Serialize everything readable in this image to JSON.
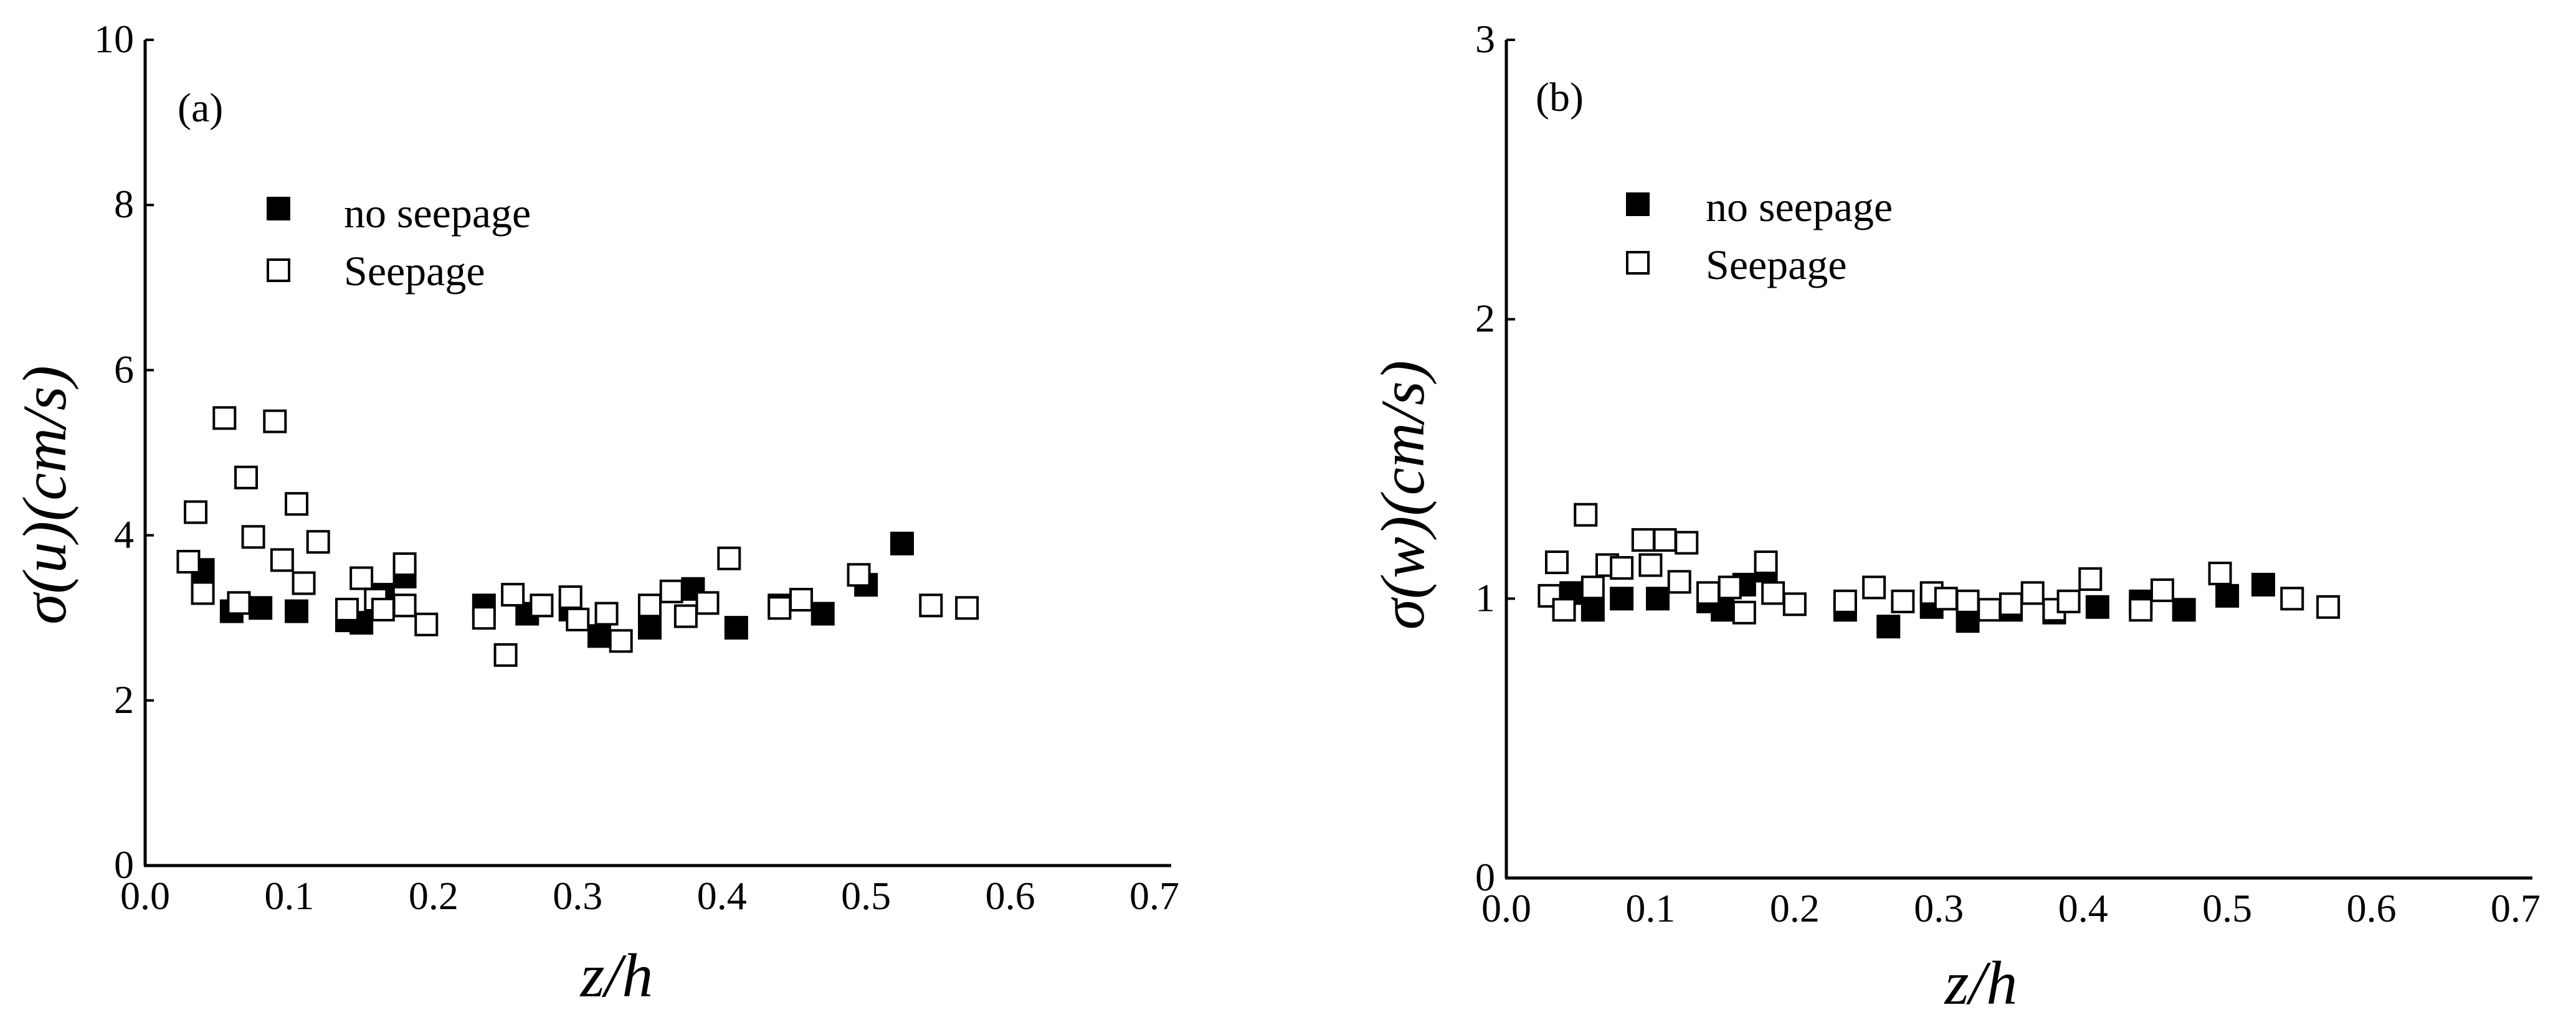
{
  "chart_data": [
    {
      "type": "scatter",
      "panel_label": "(a)",
      "title": "",
      "xlabel": "z/h",
      "ylabel": "σ(u)(cm/s)",
      "xlim": [
        0.0,
        0.7
      ],
      "ylim": [
        0,
        10
      ],
      "x_ticks": [
        "0.0",
        "0.1",
        "0.2",
        "0.3",
        "0.4",
        "0.5",
        "0.6",
        "0.7"
      ],
      "y_ticks": [
        "0",
        "2",
        "4",
        "6",
        "8",
        "10"
      ],
      "legend_placement": "upper-left",
      "grid": false,
      "series": [
        {
          "name": "no seepage",
          "marker": "filled-square",
          "points": [
            [
              0.04,
              3.58
            ],
            [
              0.06,
              3.08
            ],
            [
              0.08,
              3.12
            ],
            [
              0.105,
              3.08
            ],
            [
              0.14,
              2.97
            ],
            [
              0.15,
              2.94
            ],
            [
              0.165,
              3.28
            ],
            [
              0.18,
              3.5
            ],
            [
              0.235,
              3.15
            ],
            [
              0.265,
              3.05
            ],
            [
              0.295,
              3.1
            ],
            [
              0.315,
              2.78
            ],
            [
              0.35,
              2.88
            ],
            [
              0.38,
              3.35
            ],
            [
              0.41,
              2.88
            ],
            [
              0.44,
              3.15
            ],
            [
              0.47,
              3.05
            ],
            [
              0.5,
              3.4
            ],
            [
              0.525,
              3.9
            ]
          ]
        },
        {
          "name": "Seepage",
          "marker": "open-square",
          "points": [
            [
              0.03,
              3.68
            ],
            [
              0.035,
              4.28
            ],
            [
              0.04,
              3.3
            ],
            [
              0.055,
              5.42
            ],
            [
              0.065,
              3.18
            ],
            [
              0.07,
              4.7
            ],
            [
              0.075,
              3.98
            ],
            [
              0.09,
              5.38
            ],
            [
              0.095,
              3.7
            ],
            [
              0.105,
              4.38
            ],
            [
              0.11,
              3.42
            ],
            [
              0.12,
              3.92
            ],
            [
              0.14,
              3.1
            ],
            [
              0.15,
              3.48
            ],
            [
              0.16,
              3.22
            ],
            [
              0.165,
              3.1
            ],
            [
              0.18,
              3.65
            ],
            [
              0.18,
              3.15
            ],
            [
              0.195,
              2.92
            ],
            [
              0.235,
              3.0
            ],
            [
              0.25,
              2.55
            ],
            [
              0.255,
              3.28
            ],
            [
              0.275,
              3.15
            ],
            [
              0.295,
              3.25
            ],
            [
              0.3,
              2.98
            ],
            [
              0.32,
              3.05
            ],
            [
              0.33,
              2.72
            ],
            [
              0.35,
              3.15
            ],
            [
              0.365,
              3.32
            ],
            [
              0.375,
              3.02
            ],
            [
              0.39,
              3.18
            ],
            [
              0.405,
              3.72
            ],
            [
              0.44,
              3.12
            ],
            [
              0.455,
              3.22
            ],
            [
              0.495,
              3.52
            ],
            [
              0.545,
              3.15
            ],
            [
              0.57,
              3.12
            ]
          ]
        }
      ]
    },
    {
      "type": "scatter",
      "panel_label": "(b)",
      "title": "",
      "xlabel": "z/h",
      "ylabel": "σ(w)(cm/s)",
      "xlim": [
        0.0,
        0.7
      ],
      "ylim": [
        0,
        3
      ],
      "x_ticks": [
        "0.0",
        "0.1",
        "0.2",
        "0.3",
        "0.4",
        "0.5",
        "0.6",
        "0.7"
      ],
      "y_ticks": [
        "0",
        "1",
        "2",
        "3"
      ],
      "legend_placement": "upper-left",
      "grid": false,
      "series": [
        {
          "name": "no seepage",
          "marker": "filled-square",
          "points": [
            [
              0.045,
              1.02
            ],
            [
              0.06,
              0.96
            ],
            [
              0.08,
              1.0
            ],
            [
              0.105,
              1.0
            ],
            [
              0.14,
              0.99
            ],
            [
              0.15,
              0.96
            ],
            [
              0.165,
              1.05
            ],
            [
              0.18,
              1.1
            ],
            [
              0.235,
              0.96
            ],
            [
              0.265,
              0.9
            ],
            [
              0.295,
              0.97
            ],
            [
              0.32,
              0.92
            ],
            [
              0.35,
              0.96
            ],
            [
              0.38,
              0.95
            ],
            [
              0.41,
              0.97
            ],
            [
              0.44,
              0.99
            ],
            [
              0.47,
              0.96
            ],
            [
              0.5,
              1.01
            ],
            [
              0.525,
              1.05
            ]
          ]
        },
        {
          "name": "Seepage",
          "marker": "open-square",
          "points": [
            [
              0.03,
              1.01
            ],
            [
              0.035,
              1.13
            ],
            [
              0.04,
              0.96
            ],
            [
              0.055,
              1.3
            ],
            [
              0.06,
              1.04
            ],
            [
              0.07,
              1.12
            ],
            [
              0.08,
              1.11
            ],
            [
              0.095,
              1.21
            ],
            [
              0.1,
              1.12
            ],
            [
              0.11,
              1.21
            ],
            [
              0.12,
              1.06
            ],
            [
              0.125,
              1.2
            ],
            [
              0.14,
              1.02
            ],
            [
              0.155,
              1.04
            ],
            [
              0.165,
              0.95
            ],
            [
              0.18,
              1.13
            ],
            [
              0.185,
              1.02
            ],
            [
              0.2,
              0.98
            ],
            [
              0.235,
              0.99
            ],
            [
              0.255,
              1.04
            ],
            [
              0.275,
              0.99
            ],
            [
              0.295,
              1.02
            ],
            [
              0.305,
              1.0
            ],
            [
              0.32,
              0.99
            ],
            [
              0.335,
              0.96
            ],
            [
              0.35,
              0.98
            ],
            [
              0.365,
              1.02
            ],
            [
              0.38,
              0.96
            ],
            [
              0.39,
              0.99
            ],
            [
              0.405,
              1.07
            ],
            [
              0.44,
              0.96
            ],
            [
              0.455,
              1.03
            ],
            [
              0.495,
              1.09
            ],
            [
              0.545,
              1.0
            ],
            [
              0.57,
              0.97
            ]
          ]
        }
      ]
    }
  ]
}
